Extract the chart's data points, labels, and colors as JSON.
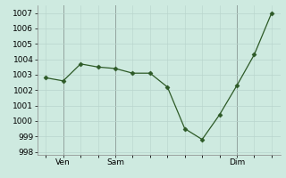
{
  "y_values": [
    1002.8,
    1002.6,
    1003.7,
    1003.5,
    1003.4,
    1003.1,
    1003.1,
    1002.2,
    999.5,
    998.8,
    1000.4,
    1002.3,
    1004.3,
    1007.0
  ],
  "x_ticks_labels": [
    "Ven",
    "Sam",
    "Dim"
  ],
  "y_min": 997.8,
  "y_max": 1007.5,
  "y_ticks": [
    998,
    999,
    1000,
    1001,
    1002,
    1003,
    1004,
    1005,
    1006,
    1007
  ],
  "line_color": "#2d5a27",
  "marker": "D",
  "marker_size": 2.5,
  "bg_color": "#ceeae0",
  "grid_major_color": "#b8d4cc",
  "grid_minor_color": "#d8eee8",
  "vline_color": "#555555",
  "tick_fontsize": 6.5
}
